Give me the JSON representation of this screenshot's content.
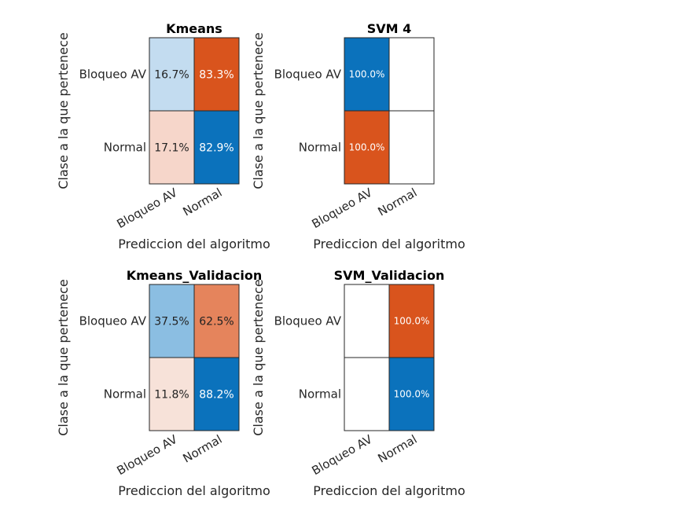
{
  "chart_data": [
    {
      "type": "heatmap",
      "title": "Kmeans",
      "xlabel": "Prediccion del algoritmo",
      "ylabel": "Clase a la que pertenece",
      "x_categories": [
        "Bloqueo AV",
        "Normal"
      ],
      "y_categories": [
        "Bloqueo AV",
        "Normal"
      ],
      "cells": [
        [
          16.7,
          83.3
        ],
        [
          17.1,
          82.9
        ]
      ],
      "labels": [
        [
          "16.7%",
          "83.3%"
        ],
        [
          "17.1%",
          "82.9%"
        ]
      ],
      "colors": [
        [
          "#c3dcf0",
          "#d9541d"
        ],
        [
          "#f6d6ca",
          "#0b72bc"
        ]
      ],
      "text_colors": [
        [
          "#222222",
          "#ffffff"
        ],
        [
          "#222222",
          "#ffffff"
        ]
      ],
      "label_size": "large"
    },
    {
      "type": "heatmap",
      "title": "SVM 4",
      "xlabel": "Prediccion del algoritmo",
      "ylabel": "Clase a la que pertenece",
      "x_categories": [
        "Bloqueo AV",
        "Normal"
      ],
      "y_categories": [
        "Bloqueo AV",
        "Normal"
      ],
      "cells": [
        [
          100.0,
          0
        ],
        [
          100.0,
          0
        ]
      ],
      "labels": [
        [
          "100.0%",
          ""
        ],
        [
          "100.0%",
          ""
        ]
      ],
      "colors": [
        [
          "#0b72bc",
          "#ffffff"
        ],
        [
          "#d9541d",
          "#ffffff"
        ]
      ],
      "text_colors": [
        [
          "#ffffff",
          "#222222"
        ],
        [
          "#ffffff",
          "#222222"
        ]
      ],
      "label_size": "small"
    },
    {
      "type": "heatmap",
      "title": "Kmeans_Validacion",
      "xlabel": "Prediccion del algoritmo",
      "ylabel": "Clase a la que pertenece",
      "x_categories": [
        "Bloqueo AV",
        "Normal"
      ],
      "y_categories": [
        "Bloqueo AV",
        "Normal"
      ],
      "cells": [
        [
          37.5,
          62.5
        ],
        [
          11.8,
          88.2
        ]
      ],
      "labels": [
        [
          "37.5%",
          "62.5%"
        ],
        [
          "11.8%",
          "88.2%"
        ]
      ],
      "colors": [
        [
          "#8bbee2",
          "#e5845c"
        ],
        [
          "#f7e2d9",
          "#0b72bc"
        ]
      ],
      "text_colors": [
        [
          "#222222",
          "#222222"
        ],
        [
          "#222222",
          "#ffffff"
        ]
      ],
      "label_size": "large"
    },
    {
      "type": "heatmap",
      "title": "SVM_Validacion",
      "xlabel": "Prediccion del algoritmo",
      "ylabel": "Clase a la que pertenece",
      "x_categories": [
        "Bloqueo AV",
        "Normal"
      ],
      "y_categories": [
        "Bloqueo AV",
        "Normal"
      ],
      "cells": [
        [
          0,
          100.0
        ],
        [
          0,
          100.0
        ]
      ],
      "labels": [
        [
          "",
          "100.0%"
        ],
        [
          "",
          "100.0%"
        ]
      ],
      "colors": [
        [
          "#ffffff",
          "#d9541d"
        ],
        [
          "#ffffff",
          "#0b72bc"
        ]
      ],
      "text_colors": [
        [
          "#222222",
          "#ffffff"
        ],
        [
          "#222222",
          "#ffffff"
        ]
      ],
      "label_size": "small"
    }
  ]
}
